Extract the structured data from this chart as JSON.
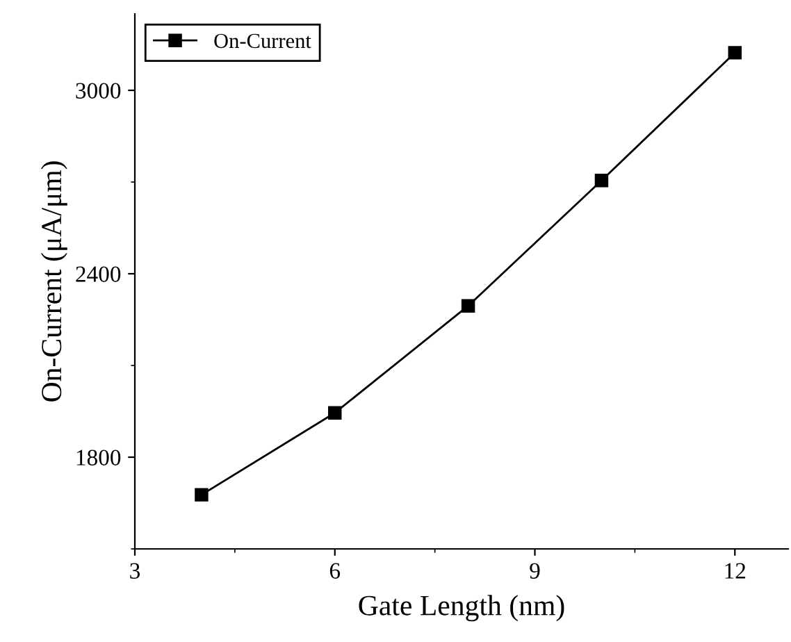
{
  "chart_data": {
    "type": "line",
    "xlabel": "Gate Length (nm)",
    "ylabel": "On-Current (μA/μm)",
    "x": [
      4,
      6,
      8,
      10,
      12
    ],
    "series": [
      {
        "name": "On-Current",
        "color": "#000000",
        "values": [
          1677,
          1945,
          2295,
          2705,
          3123
        ]
      }
    ],
    "xlim": [
      3,
      12.8
    ],
    "xticks": [
      3,
      6,
      9,
      12
    ],
    "ylim": [
      1500,
      3250
    ],
    "yticks": [
      1800,
      2400,
      3000
    ],
    "marker": "square",
    "line_style": "solid",
    "legend": "top left",
    "grid": false
  }
}
